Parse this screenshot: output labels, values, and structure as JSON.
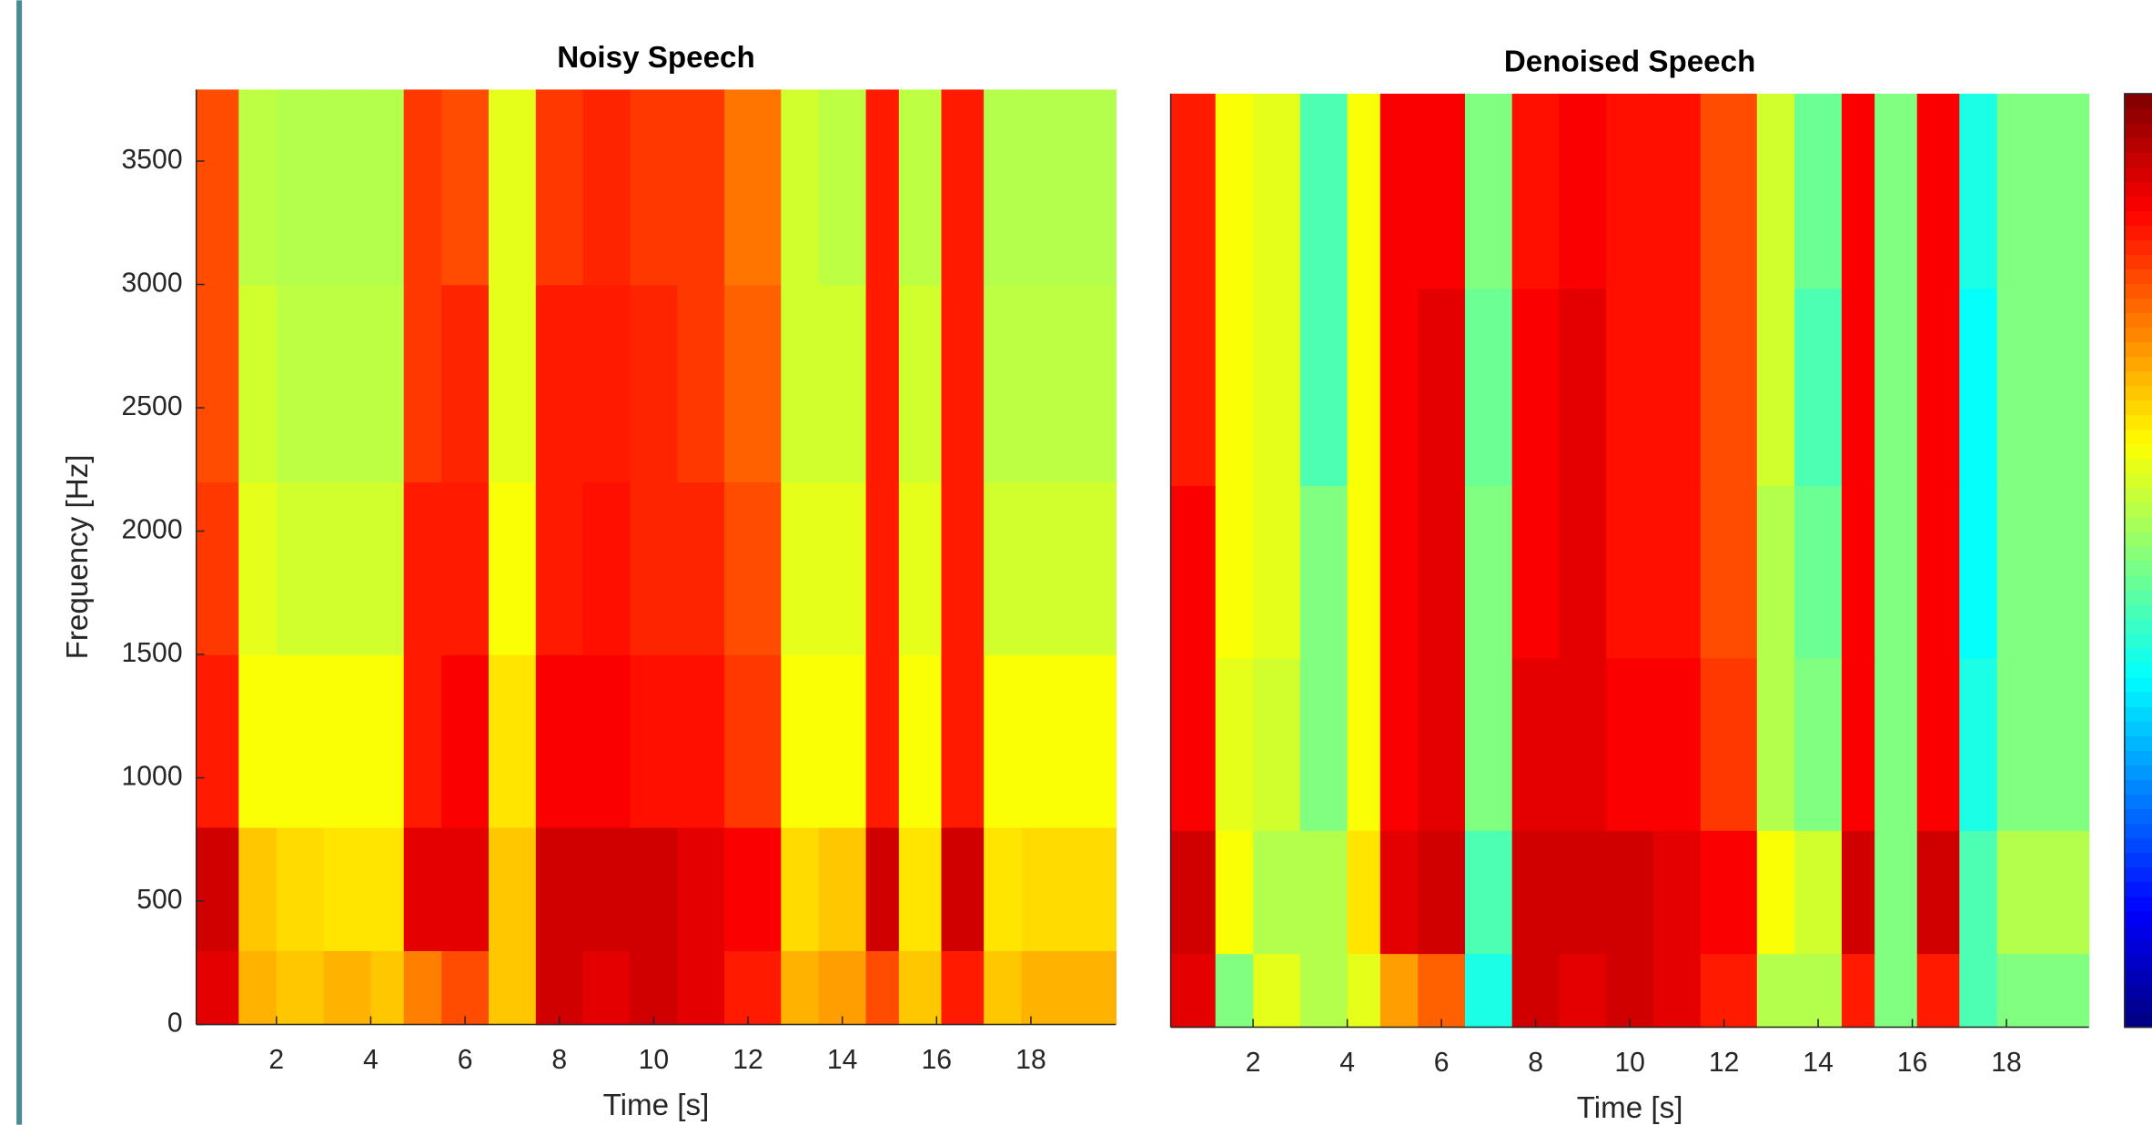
{
  "chart_data": [
    {
      "type": "heatmap",
      "title": "Noisy Speech",
      "xlabel": "Time [s]",
      "ylabel": "Frequency [Hz]",
      "colormap": "jet",
      "zlim": [
        0,
        1
      ],
      "xlim": [
        0.3,
        19.8
      ],
      "ylim": [
        0,
        3790
      ],
      "xticks": [
        2,
        4,
        6,
        8,
        10,
        12,
        14,
        16,
        18
      ],
      "yticks": [
        0,
        500,
        1000,
        1500,
        2000,
        2500,
        3000,
        3500
      ],
      "xbins": [
        0.3,
        1.2,
        2,
        3,
        4,
        4.7,
        5.5,
        6.5,
        7.5,
        8.5,
        9.5,
        10.5,
        11.5,
        12.7,
        13.5,
        14.5,
        15.2,
        16.1,
        17,
        17.8,
        19.8
      ],
      "ybins": [
        0,
        300,
        800,
        1500,
        2200,
        3000,
        3790
      ],
      "z": [
        [
          0.9,
          0.7,
          0.68,
          0.7,
          0.68,
          0.75,
          0.8,
          0.68,
          0.92,
          0.9,
          0.92,
          0.9,
          0.85,
          0.7,
          0.72,
          0.8,
          0.68,
          0.85,
          0.68,
          0.7
        ],
        [
          0.92,
          0.68,
          0.66,
          0.65,
          0.65,
          0.9,
          0.9,
          0.68,
          0.92,
          0.92,
          0.92,
          0.9,
          0.88,
          0.66,
          0.68,
          0.92,
          0.65,
          0.92,
          0.65,
          0.66
        ],
        [
          0.85,
          0.62,
          0.62,
          0.62,
          0.62,
          0.85,
          0.88,
          0.65,
          0.88,
          0.88,
          0.86,
          0.86,
          0.82,
          0.62,
          0.62,
          0.85,
          0.62,
          0.85,
          0.62,
          0.62
        ],
        [
          0.82,
          0.6,
          0.58,
          0.58,
          0.58,
          0.85,
          0.85,
          0.62,
          0.85,
          0.86,
          0.84,
          0.84,
          0.8,
          0.6,
          0.6,
          0.85,
          0.6,
          0.85,
          0.58,
          0.58
        ],
        [
          0.8,
          0.58,
          0.56,
          0.56,
          0.56,
          0.82,
          0.84,
          0.6,
          0.85,
          0.85,
          0.84,
          0.82,
          0.78,
          0.58,
          0.58,
          0.85,
          0.58,
          0.85,
          0.56,
          0.56
        ],
        [
          0.8,
          0.56,
          0.55,
          0.55,
          0.55,
          0.82,
          0.8,
          0.6,
          0.82,
          0.84,
          0.82,
          0.82,
          0.76,
          0.58,
          0.56,
          0.85,
          0.56,
          0.85,
          0.55,
          0.55
        ]
      ]
    },
    {
      "type": "heatmap",
      "title": "Denoised Speech",
      "xlabel": "Time [s]",
      "colormap": "jet",
      "zlim": [
        0,
        1
      ],
      "colorbar": true,
      "xlim": [
        0.25,
        19.75
      ],
      "ylim": [
        0,
        3790
      ],
      "xticks": [
        2,
        4,
        6,
        8,
        10,
        12,
        14,
        16,
        18
      ],
      "xbins": [
        0.25,
        1.2,
        2,
        3,
        4,
        4.7,
        5.5,
        6.5,
        7.5,
        8.5,
        9.5,
        10.5,
        11.5,
        12.7,
        13.5,
        14.5,
        15.2,
        16.1,
        17,
        17.8,
        19.75
      ],
      "ybins": [
        0,
        300,
        800,
        1500,
        2200,
        3000,
        3790
      ],
      "z": [
        [
          0.9,
          0.5,
          0.6,
          0.55,
          0.6,
          0.72,
          0.78,
          0.4,
          0.92,
          0.9,
          0.92,
          0.9,
          0.85,
          0.55,
          0.55,
          0.85,
          0.5,
          0.85,
          0.45,
          0.5
        ],
        [
          0.92,
          0.62,
          0.55,
          0.55,
          0.65,
          0.9,
          0.92,
          0.45,
          0.92,
          0.92,
          0.92,
          0.9,
          0.88,
          0.62,
          0.58,
          0.92,
          0.5,
          0.92,
          0.45,
          0.55
        ],
        [
          0.88,
          0.6,
          0.58,
          0.5,
          0.62,
          0.88,
          0.9,
          0.5,
          0.9,
          0.9,
          0.88,
          0.88,
          0.82,
          0.55,
          0.5,
          0.88,
          0.5,
          0.88,
          0.4,
          0.5
        ],
        [
          0.88,
          0.62,
          0.6,
          0.5,
          0.62,
          0.88,
          0.9,
          0.5,
          0.88,
          0.9,
          0.86,
          0.86,
          0.8,
          0.55,
          0.48,
          0.88,
          0.5,
          0.88,
          0.38,
          0.5
        ],
        [
          0.85,
          0.62,
          0.6,
          0.45,
          0.62,
          0.88,
          0.9,
          0.48,
          0.88,
          0.9,
          0.86,
          0.86,
          0.8,
          0.58,
          0.45,
          0.88,
          0.5,
          0.88,
          0.38,
          0.5
        ],
        [
          0.85,
          0.62,
          0.6,
          0.45,
          0.62,
          0.88,
          0.88,
          0.5,
          0.86,
          0.88,
          0.86,
          0.86,
          0.8,
          0.58,
          0.48,
          0.88,
          0.5,
          0.88,
          0.4,
          0.5
        ]
      ]
    }
  ]
}
